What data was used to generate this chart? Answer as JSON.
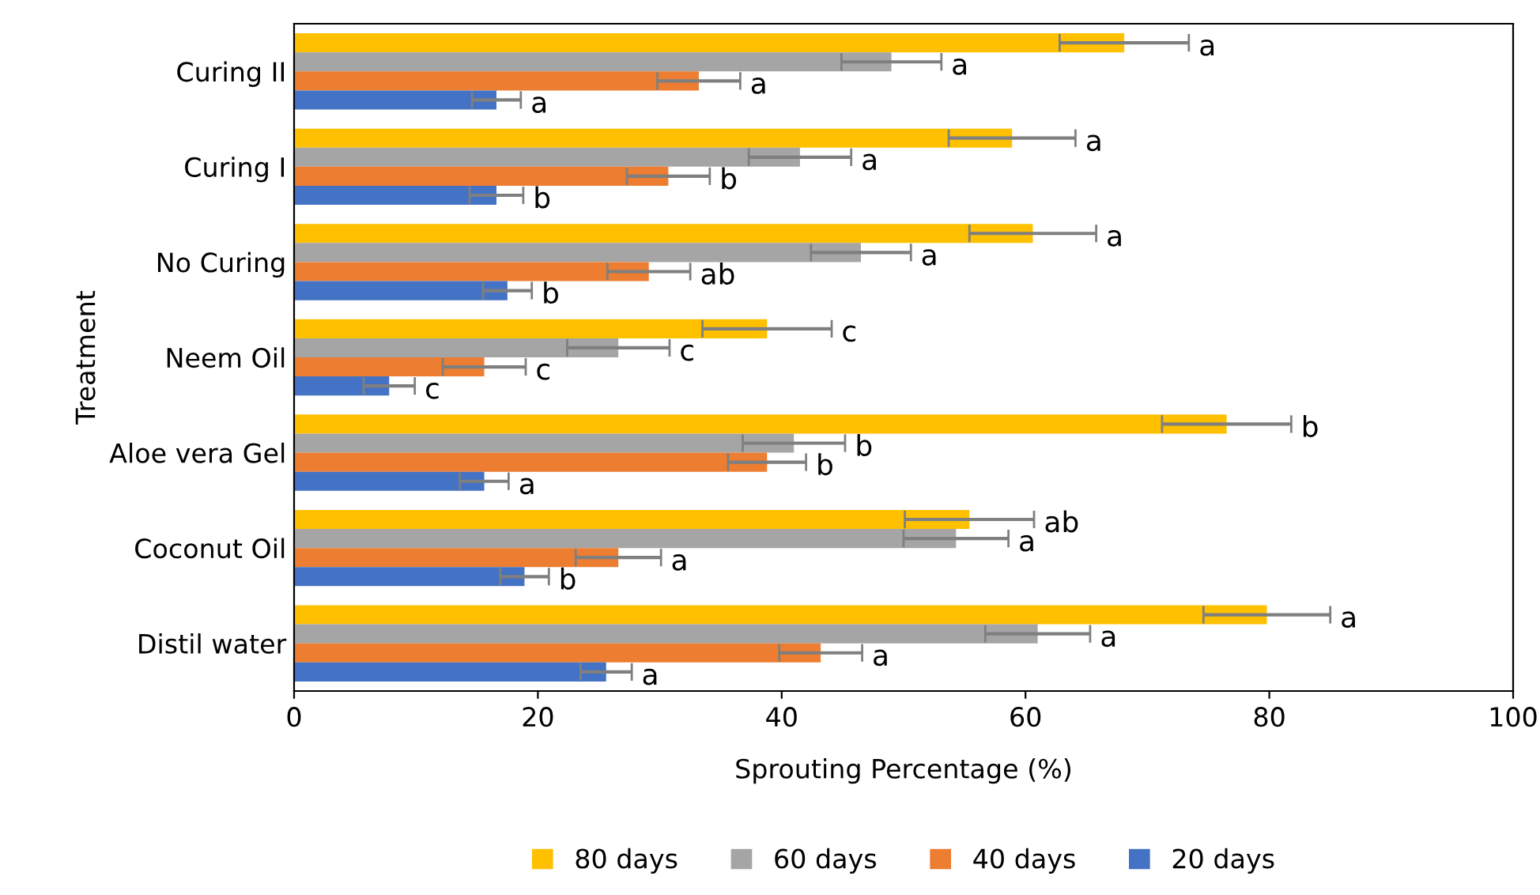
{
  "chart_data": {
    "type": "bar",
    "orientation": "horizontal",
    "xlabel": "Sprouting Percentage (%)",
    "ylabel": "Treatment",
    "categories": [
      "Curing II",
      "Curing I",
      "No Curing",
      "Neem Oil",
      "Aloe vera Gel",
      "Coconut Oil",
      "Distil water"
    ],
    "series": [
      {
        "name": "80 days",
        "color": "#ffc000",
        "values": [
          68.1,
          58.9,
          60.6,
          38.8,
          76.5,
          55.4,
          79.8
        ],
        "errors": [
          5.3,
          5.2,
          5.2,
          5.3,
          5.3,
          5.3,
          5.2
        ],
        "value_labels": [
          "a",
          "a",
          "a",
          "c",
          "b",
          "ab",
          "a"
        ]
      },
      {
        "name": "60 days",
        "color": "#a5a5a5",
        "values": [
          49.0,
          41.5,
          46.5,
          26.6,
          41.0,
          54.3,
          61.0
        ],
        "errors": [
          4.1,
          4.2,
          4.1,
          4.2,
          4.2,
          4.3,
          4.3
        ],
        "value_labels": [
          "a",
          "a",
          "a",
          "c",
          "b",
          "a",
          "a"
        ]
      },
      {
        "name": "40 days",
        "color": "#ed7d31",
        "values": [
          33.2,
          30.7,
          29.1,
          15.6,
          38.8,
          26.6,
          43.2
        ],
        "errors": [
          3.4,
          3.4,
          3.4,
          3.4,
          3.2,
          3.5,
          3.4
        ],
        "value_labels": [
          "a",
          "b",
          "ab",
          "c",
          "b",
          "a",
          "a"
        ]
      },
      {
        "name": "20 days",
        "color": "#4472c4",
        "values": [
          16.6,
          16.6,
          17.5,
          7.8,
          15.6,
          18.9,
          25.6
        ],
        "errors": [
          2.0,
          2.2,
          2.0,
          2.1,
          2.0,
          2.0,
          2.1
        ],
        "value_labels": [
          "a",
          "b",
          "b",
          "c",
          "a",
          "b",
          "a"
        ]
      }
    ],
    "xlim": [
      0,
      100
    ],
    "xticks": [
      0,
      20,
      40,
      60,
      80,
      100
    ],
    "grid": false,
    "legend": "bottom"
  }
}
